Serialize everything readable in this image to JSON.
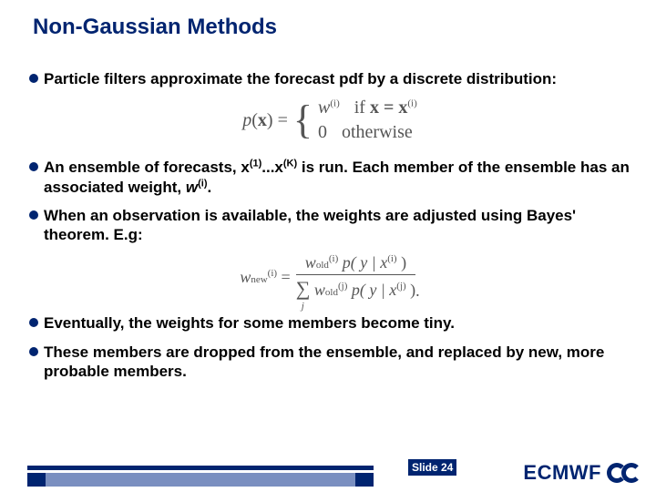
{
  "title": "Non-Gaussian Methods",
  "bullets": {
    "b1": "Particle filters approximate the forecast pdf by a discrete distribution:",
    "b2a": "An ensemble of forecasts, x",
    "b2b": "(1)",
    "b2c": "...x",
    "b2d": "(K)",
    "b2e": " is run. Each member of the ensemble has an associated weight, ",
    "b2f": "w",
    "b2g": "(i)",
    "b2h": ".",
    "b3": "When an observation is available, the weights are adjusted using Bayes' theorem. E.g:",
    "b4": "Eventually, the weights for some members become tiny.",
    "b5": "These members are dropped from the ensemble, and replaced by new, more probable members."
  },
  "eq1": {
    "lhs": "p",
    "var": "x",
    "w": "w",
    "wi": "(i)",
    "if": "if ",
    "xeq": "x = x",
    "xi": "(i)",
    "zero": "0",
    "otherwise": "otherwise"
  },
  "eq2": {
    "wnew": "w",
    "newsub": "new",
    "newi": "(i)",
    "eq": " = ",
    "wold": "w",
    "oldsub": "old",
    "oldi": "(i)",
    "py": " p( y | x",
    "xi": "(i)",
    "close": " )",
    "sum": "∑",
    "sumj": "j",
    "woldj": "w",
    "oldj": "(j)",
    "pyj": " p( y | x",
    "xj": "(j)",
    "dot": "."
  },
  "footer": {
    "slide": "Slide 24",
    "brand": "ECMWF"
  },
  "colors": {
    "title": "#002470",
    "text": "#000000",
    "eq": "#555555",
    "bg": "#ffffff"
  }
}
